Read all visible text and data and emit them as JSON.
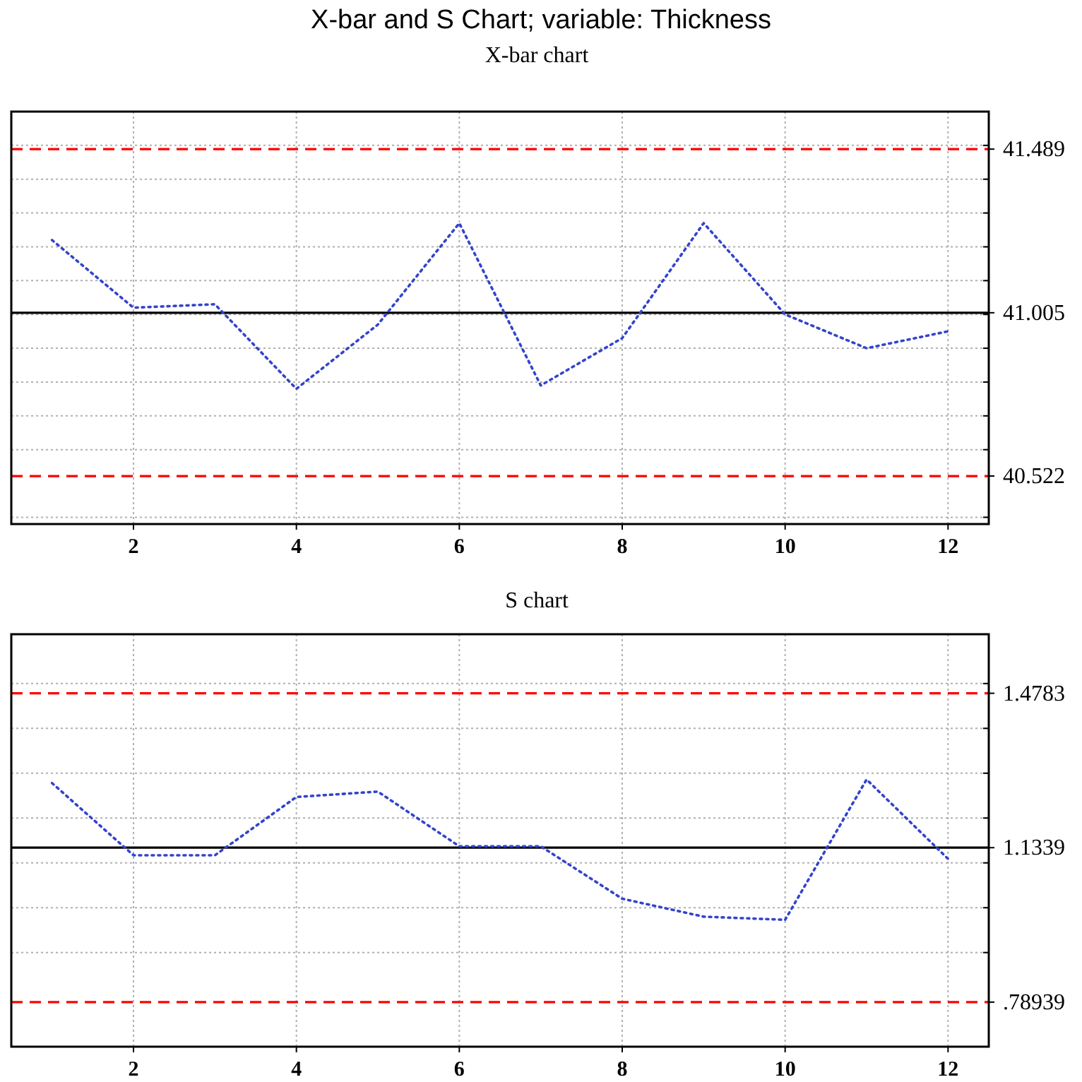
{
  "chart_data": [
    {
      "type": "line",
      "title": "X-bar and S Chart; variable:  Thickness",
      "subtitle": "X-bar chart",
      "x": [
        1,
        2,
        3,
        4,
        5,
        6,
        7,
        8,
        9,
        10,
        11,
        12
      ],
      "series": [
        {
          "color": "#3344cc",
          "values": [
            41.22,
            41.02,
            41.03,
            40.78,
            40.97,
            41.27,
            40.79,
            40.93,
            41.27,
            41.0,
            40.9,
            40.95
          ]
        }
      ],
      "xlim": [
        0.5,
        12.5
      ],
      "xticks": [
        2,
        4,
        6,
        8,
        10,
        12
      ],
      "ylim": [
        40.38,
        41.6
      ],
      "yticks": [
        {
          "value": 40.4,
          "label": null
        },
        {
          "value": 40.6,
          "label": null
        },
        {
          "value": 40.7,
          "label": null
        },
        {
          "value": 40.8,
          "label": null
        },
        {
          "value": 40.9,
          "label": null
        },
        {
          "value": 41.0,
          "label": null
        },
        {
          "value": 41.1,
          "label": null
        },
        {
          "value": 41.2,
          "label": null
        },
        {
          "value": 41.3,
          "label": null
        },
        {
          "value": 41.4,
          "label": null
        },
        {
          "value": 41.5,
          "label": null
        }
      ],
      "ref_lines": [
        {
          "axis": "y",
          "value": 41.489,
          "label": "41.489",
          "color": "#ff0000",
          "line_style": "dashed"
        },
        {
          "axis": "y",
          "value": 41.005,
          "label": "41.005",
          "color": "#000000",
          "line_style": "solid"
        },
        {
          "axis": "y",
          "value": 40.522,
          "label": "40.522",
          "color": "#ff0000",
          "line_style": "dashed"
        }
      ],
      "grid": true,
      "marker": "none",
      "line_style": "dotted"
    },
    {
      "type": "line",
      "title": "S chart",
      "x": [
        1,
        2,
        3,
        4,
        5,
        6,
        7,
        8,
        9,
        10,
        11,
        12
      ],
      "series": [
        {
          "color": "#3344cc",
          "values": [
            1.278,
            1.117,
            1.117,
            1.247,
            1.259,
            1.137,
            1.137,
            1.02,
            0.98,
            0.973,
            1.286,
            1.109
          ]
        }
      ],
      "xlim": [
        0.5,
        12.5
      ],
      "xticks": [
        2,
        4,
        6,
        8,
        10,
        12
      ],
      "ylim": [
        0.69,
        1.61
      ],
      "yticks": [
        {
          "value": 0.9,
          "label": null
        },
        {
          "value": 1.0,
          "label": null
        },
        {
          "value": 1.1,
          "label": null
        },
        {
          "value": 1.2,
          "label": null
        },
        {
          "value": 1.3,
          "label": null
        },
        {
          "value": 1.4,
          "label": null
        },
        {
          "value": 1.5,
          "label": null
        }
      ],
      "ref_lines": [
        {
          "axis": "y",
          "value": 1.4783,
          "label": "1.4783",
          "color": "#ff0000",
          "line_style": "dashed"
        },
        {
          "axis": "y",
          "value": 1.1339,
          "label": "1.1339",
          "color": "#000000",
          "line_style": "solid"
        },
        {
          "axis": "y",
          "value": 0.78939,
          "label": ".78939",
          "color": "#ff0000",
          "line_style": "dashed"
        }
      ],
      "grid": true,
      "marker": "none",
      "line_style": "dotted"
    }
  ]
}
